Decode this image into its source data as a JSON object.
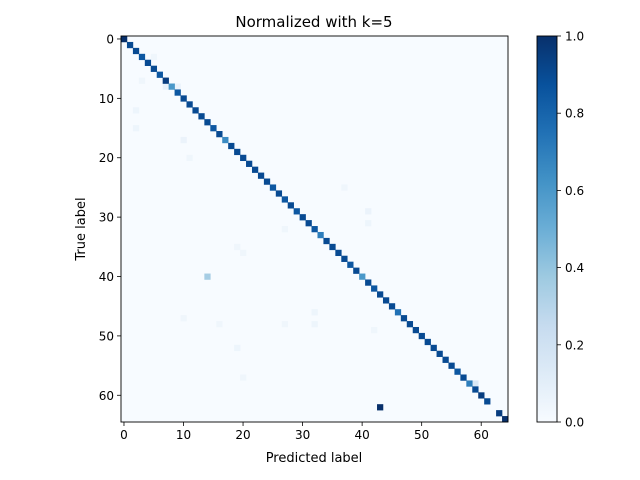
{
  "chart_data": {
    "type": "heatmap",
    "title": "Normalized with k=5",
    "xlabel": "Predicted label",
    "ylabel": "True label",
    "n_classes": 65,
    "xlim": [
      -0.5,
      64.5
    ],
    "ylim": [
      64.5,
      -0.5
    ],
    "x_ticks": [
      0,
      10,
      20,
      30,
      40,
      50,
      60
    ],
    "y_ticks": [
      0,
      10,
      20,
      30,
      40,
      50,
      60
    ],
    "colormap": "Blues",
    "color_min": "#f7fbff",
    "color_max": "#08306b",
    "colorbar": {
      "range": [
        0.0,
        1.0
      ],
      "ticks": [
        0.0,
        0.2,
        0.4,
        0.6,
        0.8,
        1.0
      ],
      "tick_labels": [
        "0.0",
        "0.2",
        "0.4",
        "0.6",
        "0.8",
        "1.0"
      ]
    },
    "diagonal": [
      1.0,
      0.9,
      0.9,
      0.85,
      0.9,
      0.9,
      0.85,
      0.95,
      0.6,
      0.85,
      0.9,
      0.9,
      0.9,
      0.9,
      0.9,
      0.85,
      0.9,
      0.65,
      0.9,
      0.9,
      0.9,
      0.9,
      0.9,
      0.9,
      0.9,
      0.85,
      0.9,
      0.85,
      0.9,
      0.85,
      0.9,
      0.9,
      0.85,
      0.7,
      0.9,
      0.9,
      0.9,
      0.9,
      0.85,
      0.9,
      0.6,
      0.9,
      0.85,
      0.9,
      0.9,
      0.9,
      0.75,
      0.9,
      0.9,
      0.9,
      0.9,
      0.9,
      0.9,
      0.9,
      0.9,
      0.9,
      0.85,
      0.9,
      0.7,
      0.9,
      0.95,
      0.9,
      0.0,
      0.95,
      1.0
    ],
    "off_diagonal": [
      {
        "row": 40,
        "col": 14,
        "value": 0.35
      },
      {
        "row": 62,
        "col": 43,
        "value": 1.0
      },
      {
        "row": 58,
        "col": 59,
        "value": 0.15
      },
      {
        "row": 8,
        "col": 7,
        "value": 0.08
      },
      {
        "row": 8,
        "col": 9,
        "value": 0.06
      },
      {
        "row": 12,
        "col": 2,
        "value": 0.05
      },
      {
        "row": 15,
        "col": 2,
        "value": 0.05
      },
      {
        "row": 17,
        "col": 10,
        "value": 0.06
      },
      {
        "row": 20,
        "col": 11,
        "value": 0.04
      },
      {
        "row": 29,
        "col": 41,
        "value": 0.06
      },
      {
        "row": 31,
        "col": 41,
        "value": 0.05
      },
      {
        "row": 32,
        "col": 27,
        "value": 0.04
      },
      {
        "row": 48,
        "col": 16,
        "value": 0.04
      },
      {
        "row": 48,
        "col": 32,
        "value": 0.05
      },
      {
        "row": 46,
        "col": 32,
        "value": 0.05
      },
      {
        "row": 52,
        "col": 19,
        "value": 0.05
      },
      {
        "row": 57,
        "col": 20,
        "value": 0.04
      },
      {
        "row": 48,
        "col": 27,
        "value": 0.04
      },
      {
        "row": 25,
        "col": 37,
        "value": 0.04
      },
      {
        "row": 35,
        "col": 19,
        "value": 0.04
      },
      {
        "row": 3,
        "col": 5,
        "value": 0.04
      },
      {
        "row": 7,
        "col": 3,
        "value": 0.04
      },
      {
        "row": 49,
        "col": 42,
        "value": 0.04
      },
      {
        "row": 36,
        "col": 20,
        "value": 0.04
      },
      {
        "row": 47,
        "col": 10,
        "value": 0.04
      }
    ]
  }
}
